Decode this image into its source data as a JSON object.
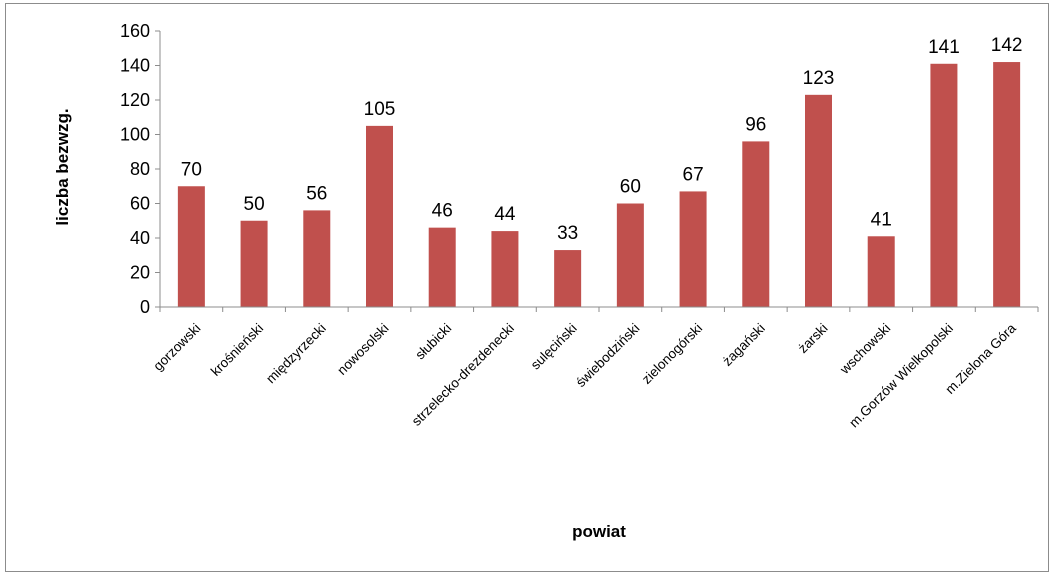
{
  "chart_data": {
    "type": "bar",
    "categories": [
      "gorzowski",
      "krośnieński",
      "międzyrzecki",
      "nowosolski",
      "słubicki",
      "strzelecko-drezdenecki",
      "sulęciński",
      "świebodziński",
      "zielonogórski",
      "żagański",
      "żarski",
      "wschowski",
      "m.Gorzów Wielkopolski",
      "m.Zielona Góra"
    ],
    "values": [
      70,
      50,
      56,
      105,
      46,
      44,
      33,
      60,
      67,
      96,
      123,
      41,
      141,
      142
    ],
    "xlabel": "powiat",
    "ylabel": "liczba bezwzg.",
    "ylim": [
      0,
      160
    ],
    "yticks": [
      0,
      20,
      40,
      60,
      80,
      100,
      120,
      140,
      160
    ],
    "grid": false,
    "legend": false,
    "bar_color": "#c0504d",
    "data_labels": true
  }
}
